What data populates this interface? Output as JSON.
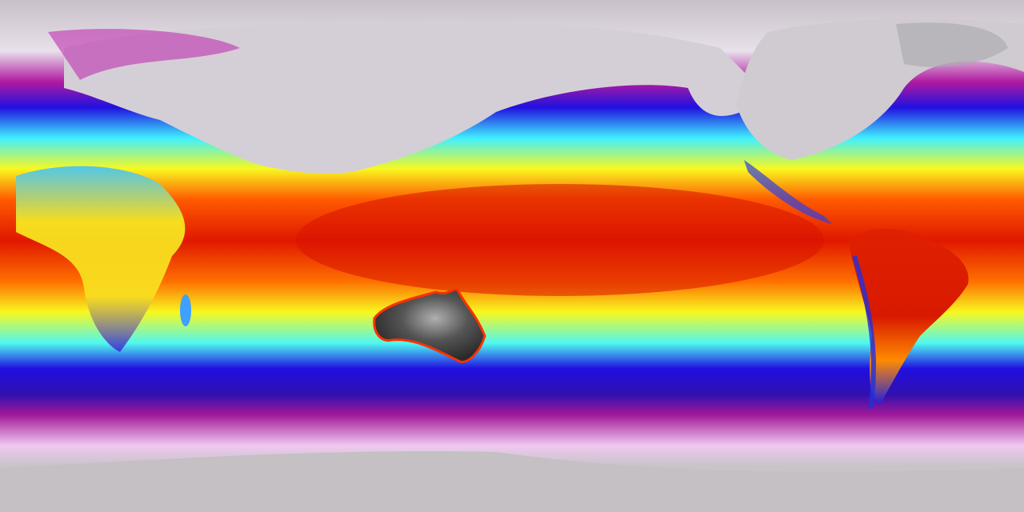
{
  "colors": {
    "polar": "#c6c0c6",
    "cold_pink": "#f0c8f0",
    "magenta": "#a0109a",
    "blue": "#1a10e0",
    "cyan": "#40f0ff",
    "yellow": "#f8f820",
    "orange": "#ff6a00",
    "red": "#e81800",
    "australia_dark": "#3a3a3a",
    "land_north": "#d0ccd2"
  }
}
